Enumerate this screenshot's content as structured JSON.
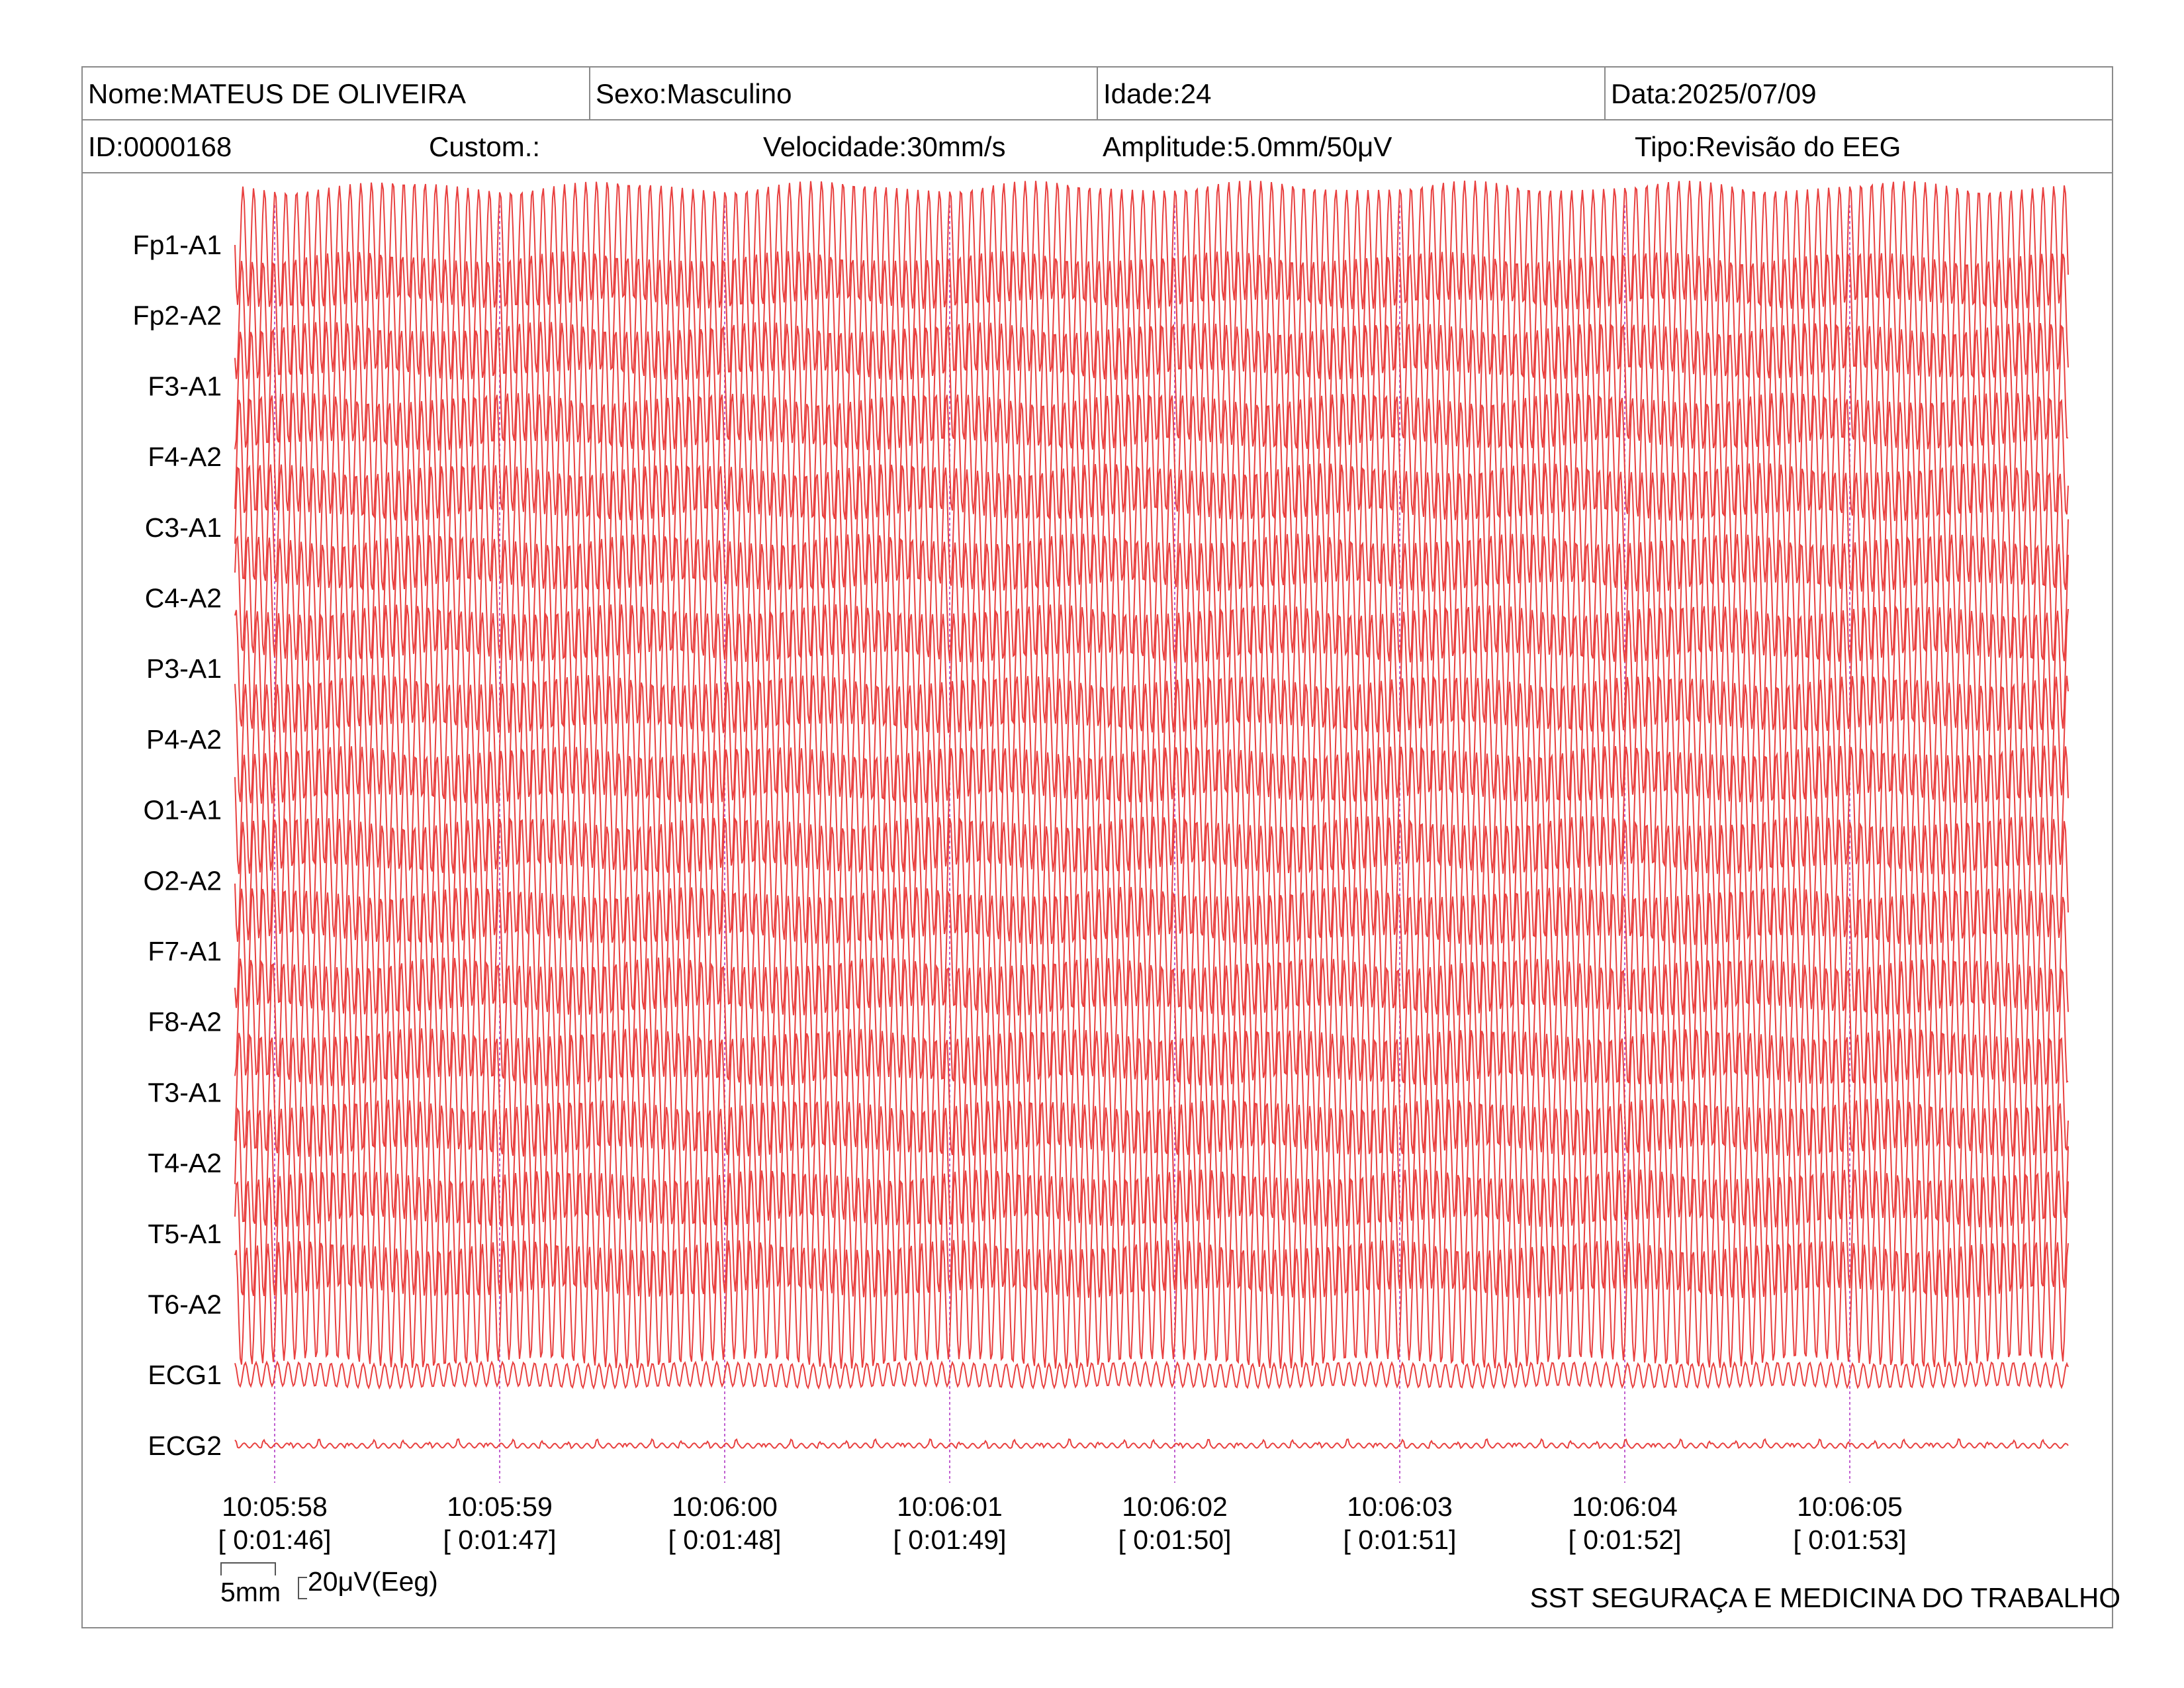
{
  "header": {
    "nome": "Nome:MATEUS DE OLIVEIRA",
    "sexo": "Sexo:Masculino",
    "idade": "Idade:24",
    "data": "Data:2025/07/09",
    "id": "ID:0000168",
    "custom": "Custom.:",
    "velocidade": "Velocidade:30mm/s",
    "amplitude": "Amplitude:5.0mm/50μV",
    "tipo": "Tipo:Revisão do EEG"
  },
  "scale": {
    "time": "5mm",
    "amplitude": "20μV(Eeg)"
  },
  "footer": "SST SEGURAÇA E MEDICINA DO TRABALHO",
  "colors": {
    "trace": "#e8403f",
    "marker": "#c060d0",
    "border": "#8a8a8a"
  },
  "chart_data": {
    "type": "line",
    "channels": [
      "Fp1-A1",
      "Fp2-A2",
      "F3-A1",
      "F4-A2",
      "C3-A1",
      "C4-A2",
      "P3-A1",
      "P4-A2",
      "O1-A1",
      "O2-A2",
      "F7-A1",
      "F8-A2",
      "T3-A1",
      "T4-A2",
      "T5-A1",
      "T6-A2",
      "ECG1",
      "ECG2"
    ],
    "time_markers": [
      {
        "clock": "10:05:58",
        "elapsed": "[ 0:01:46]"
      },
      {
        "clock": "10:05:59",
        "elapsed": "[ 0:01:47]"
      },
      {
        "clock": "10:06:00",
        "elapsed": "[ 0:01:48]"
      },
      {
        "clock": "10:06:01",
        "elapsed": "[ 0:01:49]"
      },
      {
        "clock": "10:06:02",
        "elapsed": "[ 0:01:50]"
      },
      {
        "clock": "10:06:03",
        "elapsed": "[ 0:01:51]"
      },
      {
        "clock": "10:06:04",
        "elapsed": "[ 0:01:52]"
      },
      {
        "clock": "10:06:05",
        "elapsed": "[ 0:01:53]"
      }
    ],
    "speed": "30mm/s",
    "sensitivity": "5.0mm/50μV",
    "dominant_frequency_hz": 21,
    "eeg_amplitude_uv": 50,
    "ecg1_amplitude_uv": 10,
    "ecg2_amplitude_uv": 2
  }
}
